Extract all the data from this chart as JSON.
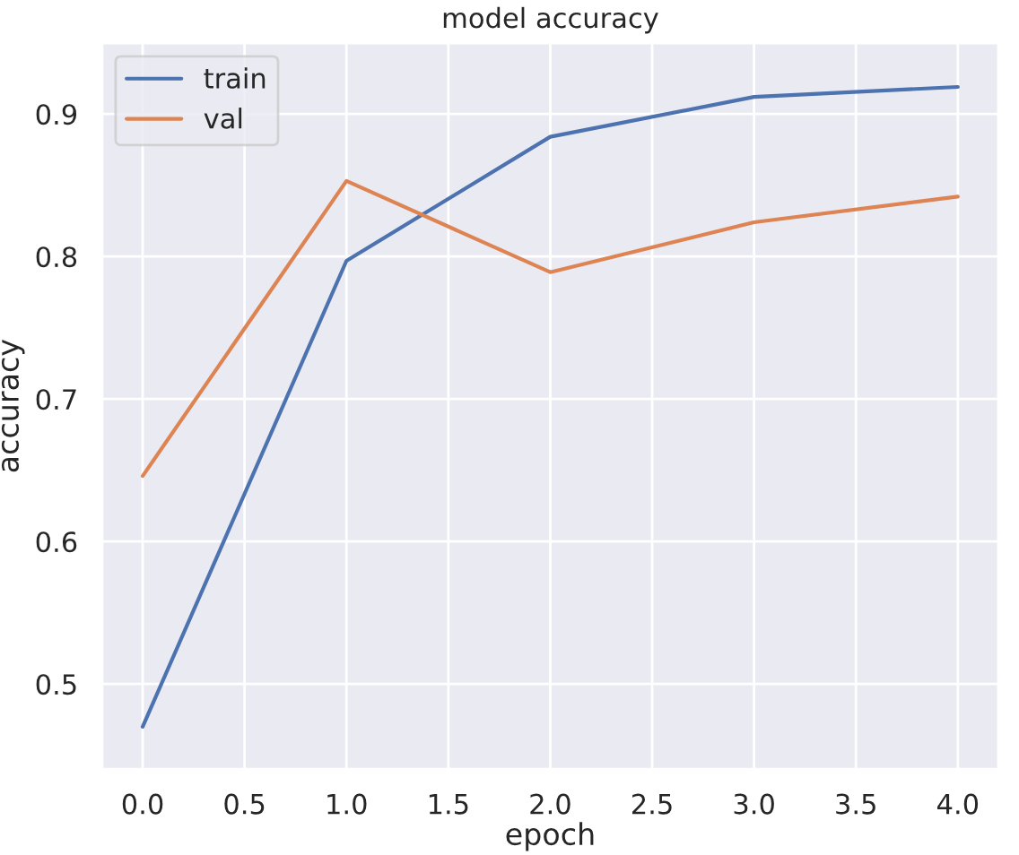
{
  "chart_data": {
    "type": "line",
    "title": "model accuracy",
    "xlabel": "epoch",
    "ylabel": "accuracy",
    "x": [
      0,
      1,
      2,
      3,
      4
    ],
    "series": [
      {
        "name": "train",
        "color": "#4c72b0",
        "values": [
          0.47,
          0.797,
          0.884,
          0.912,
          0.919
        ]
      },
      {
        "name": "val",
        "color": "#dd8452",
        "values": [
          0.646,
          0.853,
          0.789,
          0.824,
          0.842
        ]
      }
    ],
    "xlim": [
      -0.2,
      4.2
    ],
    "xticks": [
      {
        "value": 0,
        "label": "0.0"
      },
      0.5,
      {
        "value": 1,
        "label": "1.0"
      },
      1.5,
      {
        "value": 2,
        "label": "2.0"
      },
      2.5,
      {
        "value": 3,
        "label": "3.0"
      },
      3.5,
      {
        "value": 4,
        "label": "4.0"
      }
    ],
    "ylim": [
      0.44,
      0.95
    ],
    "yticks": [
      0.5,
      0.6,
      0.7,
      0.8,
      0.9
    ],
    "grid": true,
    "legend": "top left",
    "line_style": "solid",
    "marker": "none"
  }
}
